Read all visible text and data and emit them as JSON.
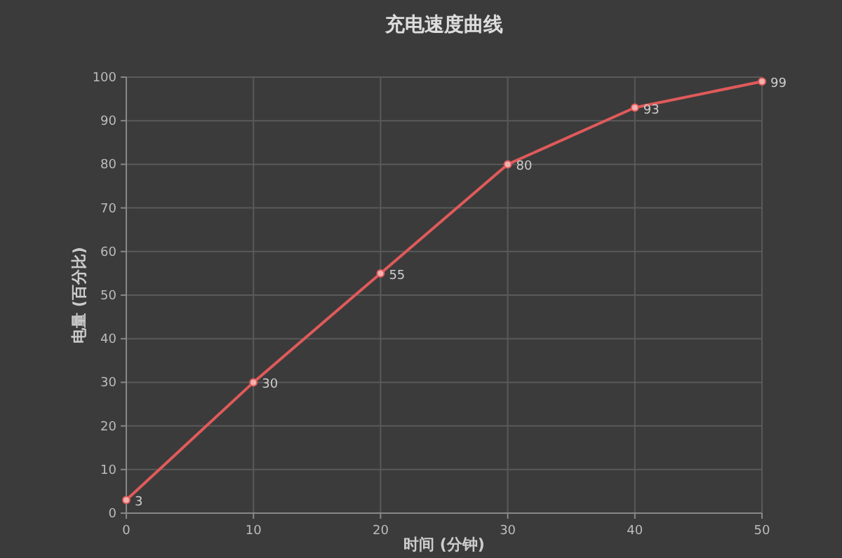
{
  "chart_data": {
    "type": "line",
    "title": "充电速度曲线",
    "xlabel": "时间 (分钟)",
    "ylabel": "电量 (百分比)",
    "x": [
      0,
      10,
      20,
      30,
      40,
      50
    ],
    "series": [
      {
        "color": "#e05a5a",
        "values": [
          3,
          30,
          55,
          80,
          93,
          99
        ]
      }
    ],
    "xlim": [
      0,
      50
    ],
    "xticks": [
      0,
      10,
      20,
      30,
      40,
      50
    ],
    "ylim": [
      0,
      100
    ],
    "yticks": [
      0,
      10,
      20,
      30,
      40,
      50,
      60,
      70,
      80,
      90,
      100
    ],
    "grid": true,
    "marker": "circle",
    "line_style": "solid",
    "data_labels": true
  }
}
